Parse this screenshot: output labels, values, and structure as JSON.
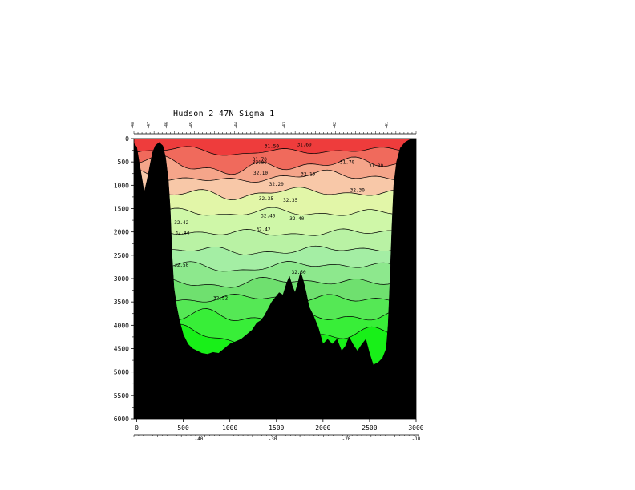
{
  "chart_data": {
    "type": "contour_section",
    "title": "Hudson 2 47N Sigma 1",
    "x_axis": {
      "range": [
        -30,
        3000
      ],
      "ticks": [
        0,
        500,
        1000,
        1500,
        2000,
        2500,
        3000
      ],
      "tick_labels": [
        "0",
        "500",
        "1000",
        "1500",
        "2000",
        "2500",
        "3000"
      ]
    },
    "y_axis": {
      "range": [
        0,
        6000
      ],
      "inverted": true,
      "ticks": [
        0,
        500,
        1000,
        1500,
        2000,
        2500,
        3000,
        3500,
        4000,
        4500,
        5000,
        5500,
        6000
      ],
      "tick_labels": [
        "0",
        "500",
        "1000",
        "1500",
        "2000",
        "2500",
        "3000",
        "3500",
        "4000",
        "4500",
        "5000",
        "5500",
        "6000"
      ]
    },
    "secondary_x_axis": {
      "ticks": [
        -40,
        -30,
        -20,
        -10
      ],
      "tick_labels": [
        "-40",
        "-30",
        "-20",
        "-10"
      ]
    },
    "band_colors": [
      "#ee3c3c",
      "#f06a5c",
      "#f5a58a",
      "#f8c8a8",
      "#e2f6a8",
      "#cff7a8",
      "#b9f2a4",
      "#a4eea4",
      "#8de88d",
      "#6fe06f",
      "#55e855",
      "#38ee38",
      "#18f018"
    ],
    "seafloor_color": "#000000",
    "contour_labels": [
      {
        "text": "31.50",
        "x": 1450,
        "y": 200
      },
      {
        "text": "31.60",
        "x": 1800,
        "y": 160
      },
      {
        "text": "31.70",
        "x": 1320,
        "y": 480
      },
      {
        "text": "31.70",
        "x": 2260,
        "y": 540
      },
      {
        "text": "31.80",
        "x": 2570,
        "y": 620
      },
      {
        "text": "32.00",
        "x": 1320,
        "y": 550
      },
      {
        "text": "32.10",
        "x": 1330,
        "y": 770
      },
      {
        "text": "32.10",
        "x": 1840,
        "y": 800
      },
      {
        "text": "32.20",
        "x": 1500,
        "y": 1010
      },
      {
        "text": "32.30",
        "x": 2370,
        "y": 1140
      },
      {
        "text": "32.35",
        "x": 1390,
        "y": 1320
      },
      {
        "text": "32.35",
        "x": 1650,
        "y": 1350
      },
      {
        "text": "32.40",
        "x": 1410,
        "y": 1690
      },
      {
        "text": "32.40",
        "x": 1720,
        "y": 1750
      },
      {
        "text": "32.42",
        "x": 1360,
        "y": 1980
      },
      {
        "text": "32.42",
        "x": 480,
        "y": 1830
      },
      {
        "text": "32.44",
        "x": 490,
        "y": 2050
      },
      {
        "text": "32.50",
        "x": 480,
        "y": 2740
      },
      {
        "text": "32.50",
        "x": 1740,
        "y": 2900
      },
      {
        "text": "32.52",
        "x": 900,
        "y": 3450
      }
    ],
    "upper_axis_labels": [
      "-48",
      "-47",
      "-46",
      "-45",
      "-44",
      "-43",
      "-42",
      "-41"
    ]
  }
}
